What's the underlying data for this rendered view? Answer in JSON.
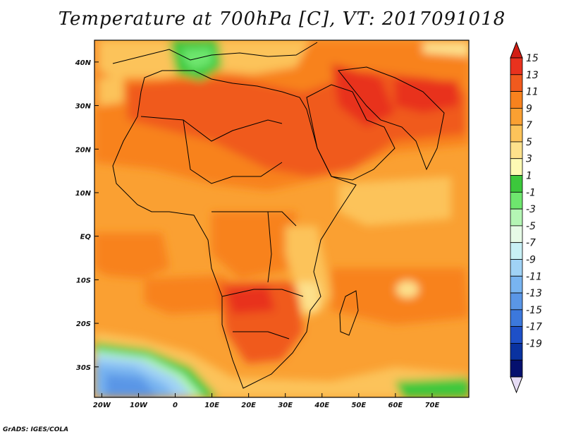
{
  "title": "Temperature at 700hPa [C], VT: 2017091018",
  "credit": "GrADS: IGES/COLA",
  "map": {
    "lon_range": [
      -22,
      80
    ],
    "lat_range": [
      -37,
      45
    ],
    "lon_ticks": [
      {
        "value": -20,
        "label": "20W"
      },
      {
        "value": -10,
        "label": "10W"
      },
      {
        "value": 0,
        "label": "0"
      },
      {
        "value": 10,
        "label": "10E"
      },
      {
        "value": 20,
        "label": "20E"
      },
      {
        "value": 30,
        "label": "30E"
      },
      {
        "value": 40,
        "label": "40E"
      },
      {
        "value": 50,
        "label": "50E"
      },
      {
        "value": 60,
        "label": "60E"
      },
      {
        "value": 70,
        "label": "70E"
      }
    ],
    "lat_ticks": [
      {
        "value": 40,
        "label": "40N"
      },
      {
        "value": 30,
        "label": "30N"
      },
      {
        "value": 20,
        "label": "20N"
      },
      {
        "value": 10,
        "label": "10N"
      },
      {
        "value": 0,
        "label": "EQ"
      },
      {
        "value": -10,
        "label": "10S"
      },
      {
        "value": -20,
        "label": "20S"
      },
      {
        "value": -30,
        "label": "30S"
      }
    ]
  },
  "colorbar": {
    "labels": [
      "15",
      "13",
      "11",
      "9",
      "7",
      "5",
      "3",
      "1",
      "-1",
      "-3",
      "-5",
      "-7",
      "-9",
      "-11",
      "-13",
      "-15",
      "-17",
      "-19"
    ],
    "colors": [
      "#e8321e",
      "#f05a1e",
      "#f8821e",
      "#faa032",
      "#fcc35a",
      "#fde18c",
      "#fdfab4",
      "#3cc83c",
      "#6ee66e",
      "#b4f5b4",
      "#e6fae6",
      "#c8f0f5",
      "#a0d2f5",
      "#78b4f0",
      "#5a96e6",
      "#3c78dc",
      "#1e50c8",
      "#0a32a0",
      "#05106e"
    ],
    "top_color": "#d21e14",
    "bottom_color": "#e6dcf5"
  }
}
